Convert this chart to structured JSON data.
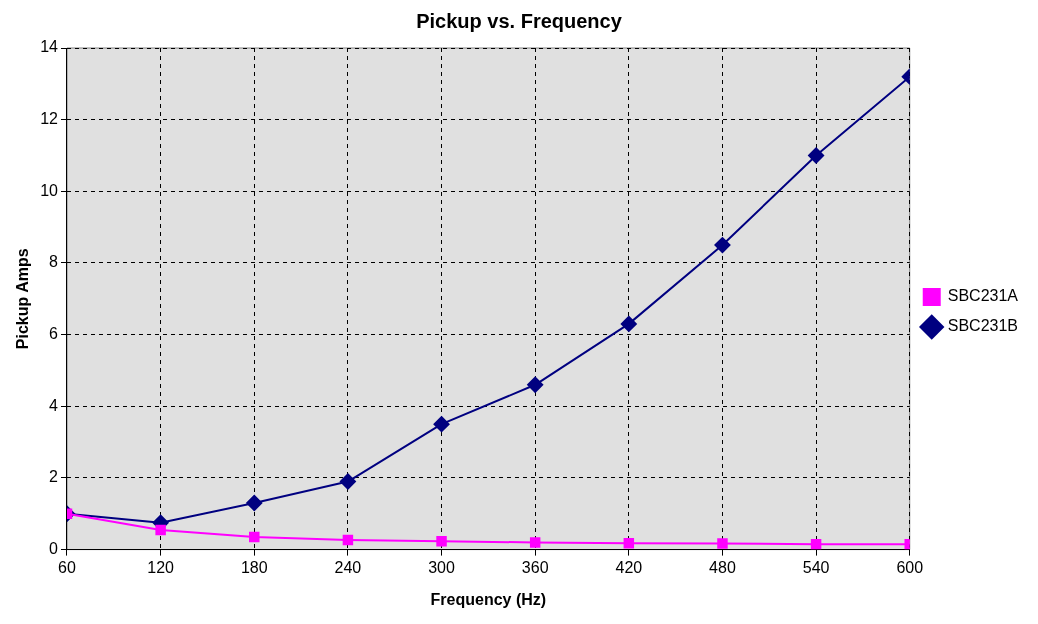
{
  "chart_data": {
    "type": "line",
    "title": "Pickup vs. Frequency",
    "xlabel": "Frequency (Hz)",
    "ylabel": "Pickup Amps",
    "x": [
      60,
      120,
      180,
      240,
      300,
      360,
      420,
      480,
      540,
      600
    ],
    "xlim": [
      60,
      600
    ],
    "xticks": [
      60,
      120,
      180,
      240,
      300,
      360,
      420,
      480,
      540,
      600
    ],
    "ylim": [
      0,
      14
    ],
    "yticks": [
      0,
      2,
      4,
      6,
      8,
      10,
      12,
      14
    ],
    "grid": true,
    "legend": "right",
    "series": [
      {
        "name": "SBC231B",
        "color": "#000080",
        "marker": "diamond",
        "values": [
          1.0,
          0.75,
          1.3,
          1.9,
          3.5,
          4.6,
          6.3,
          8.5,
          11.0,
          13.2
        ]
      },
      {
        "name": "SBC231A",
        "color": "#ff00ff",
        "marker": "square",
        "values": [
          1.0,
          0.55,
          0.35,
          0.27,
          0.23,
          0.2,
          0.18,
          0.17,
          0.15,
          0.15
        ]
      }
    ]
  }
}
